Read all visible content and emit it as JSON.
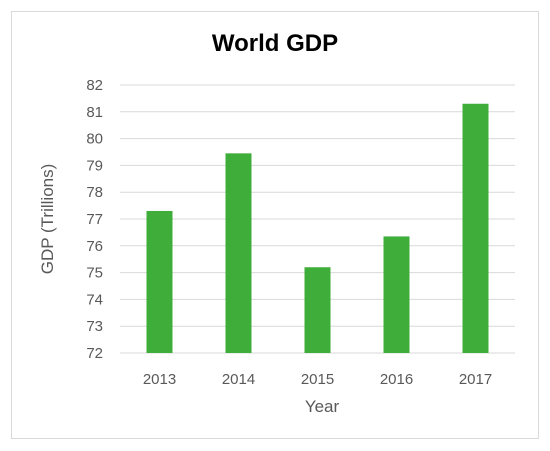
{
  "chart_data": {
    "type": "bar",
    "title": "World GDP",
    "xlabel": "Year",
    "ylabel": "GDP (Trillions)",
    "categories": [
      "2013",
      "2014",
      "2015",
      "2016",
      "2017"
    ],
    "values": [
      77.3,
      79.45,
      75.2,
      76.35,
      81.3
    ],
    "ylim": [
      72,
      82
    ],
    "yticks": [
      "72",
      "73",
      "74",
      "75",
      "76",
      "77",
      "78",
      "79",
      "80",
      "81",
      "82"
    ],
    "bar_color": "#3fad39",
    "grid": true,
    "legend": "none"
  }
}
